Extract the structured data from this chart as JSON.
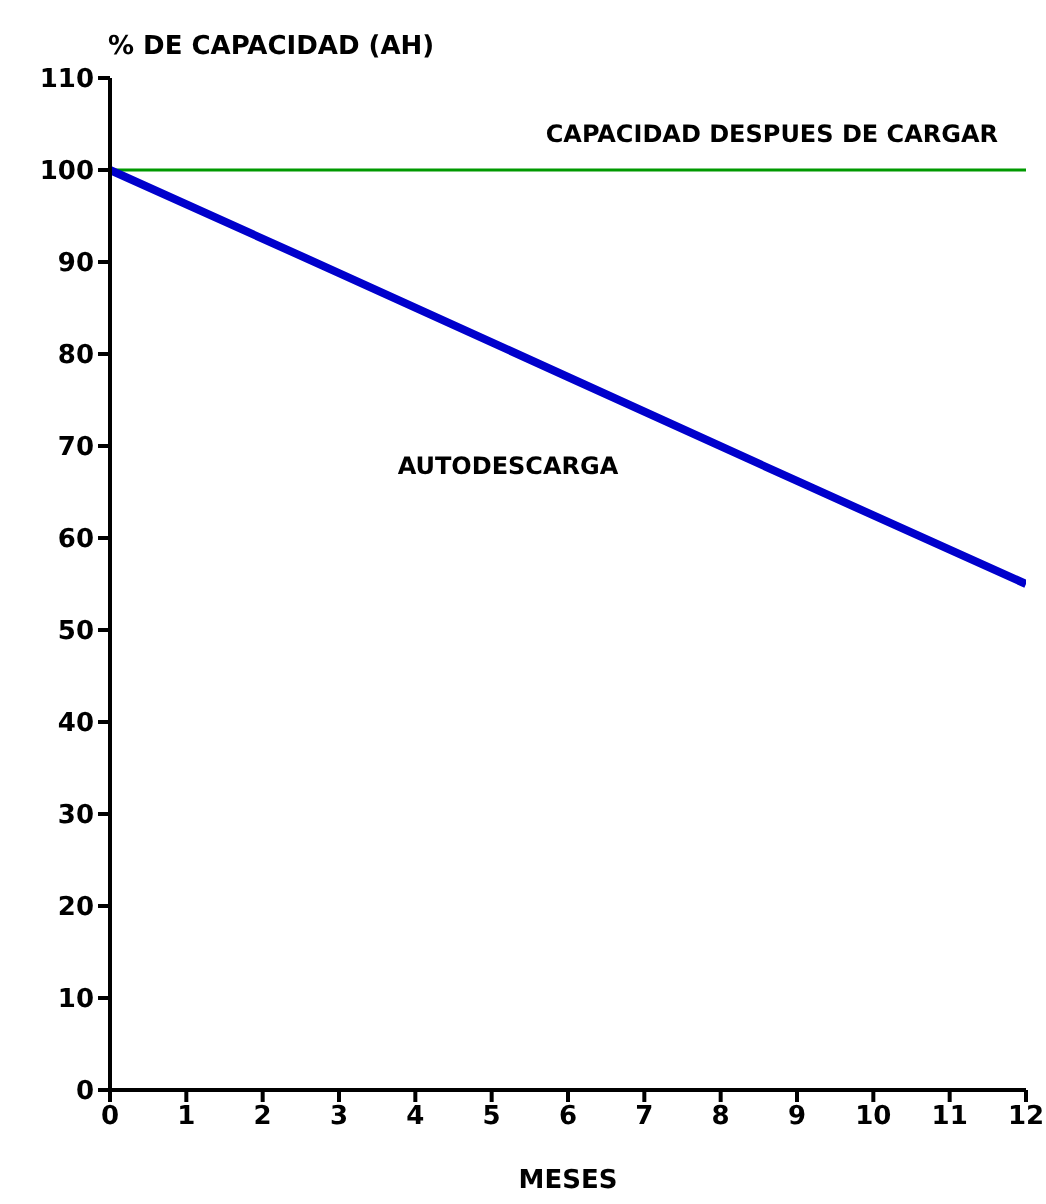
{
  "chart_data": {
    "type": "line",
    "ylabel": "% DE CAPACIDAD (AH)",
    "xlabel": "MESES",
    "x": [
      0,
      3,
      6,
      9,
      12
    ],
    "series": [
      {
        "name": "AUTODESCARGA",
        "color": "#0000cc",
        "values": [
          100,
          88.8,
          77.5,
          66.2,
          55
        ]
      }
    ],
    "xlim": [
      0,
      12
    ],
    "xticks": [
      0,
      1,
      2,
      3,
      4,
      5,
      6,
      7,
      8,
      9,
      10,
      11,
      12
    ],
    "ylim": [
      0,
      110
    ],
    "yticks": [
      0,
      10,
      20,
      30,
      40,
      50,
      60,
      70,
      80,
      90,
      100,
      110
    ],
    "ref_lines": [
      {
        "axis": "y",
        "value": 100,
        "label": "CAPACIDAD DESPUES DE CARGAR",
        "color": "#009900"
      }
    ],
    "grid": false,
    "marker": "none",
    "line_style": "solid",
    "legend": false
  }
}
